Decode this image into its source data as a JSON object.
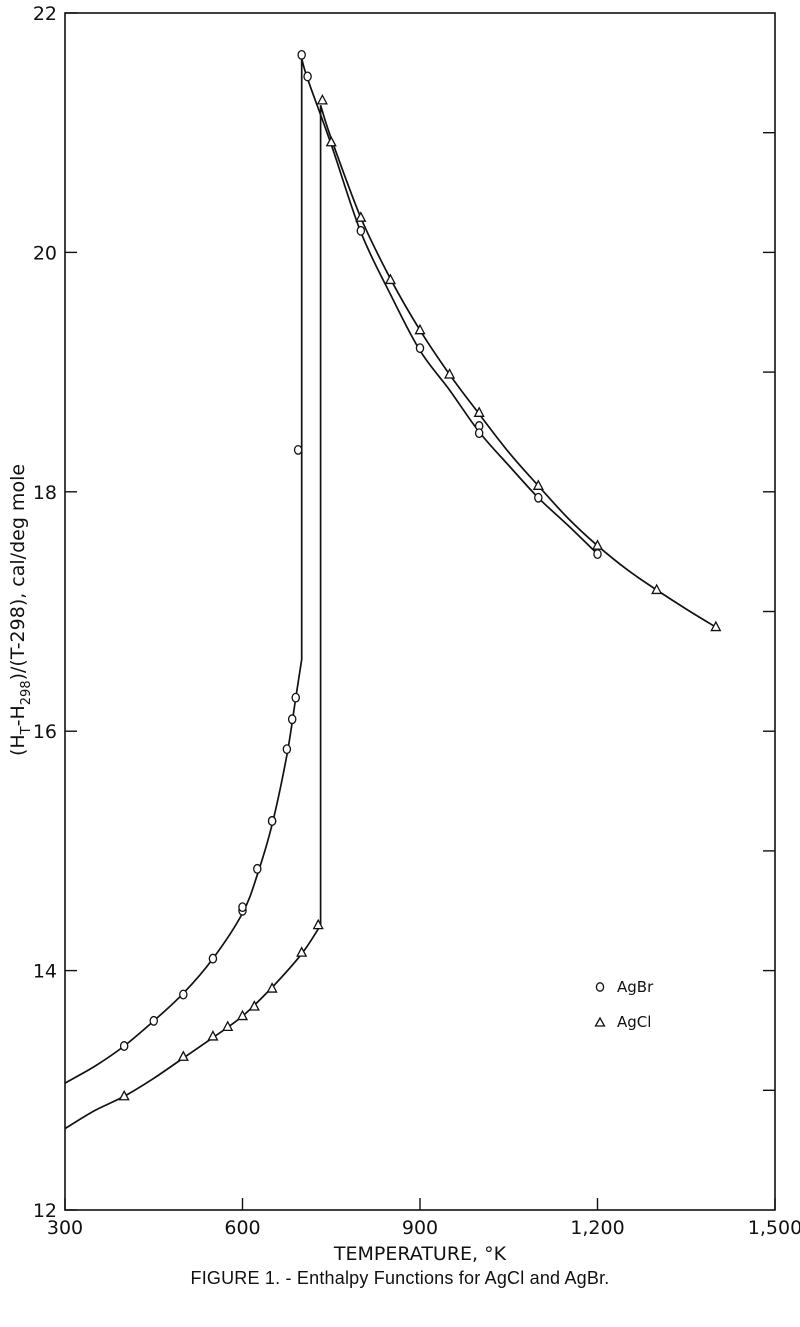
{
  "caption": "FIGURE 1. - Enthalpy Functions for AgCl and AgBr.",
  "chart_data": {
    "type": "scatter",
    "title": "",
    "xlabel": "TEMPERATURE, °K",
    "ylabel_parts": [
      "(H",
      "T",
      "-H",
      "298",
      ")/(T-298),  cal/deg mole"
    ],
    "xlim": [
      300,
      1500
    ],
    "ylim": [
      12,
      22
    ],
    "x_ticks": [
      300,
      600,
      900,
      1200,
      1500
    ],
    "x_tick_labels": [
      "300",
      "600",
      "900",
      "1,200",
      "1,500"
    ],
    "y_ticks": [
      12,
      14,
      16,
      18,
      20,
      22
    ],
    "y_tick_labels": [
      "12",
      "14",
      "16",
      "18",
      "20",
      "22"
    ],
    "grid": false,
    "legend_position": "right-middle",
    "series": [
      {
        "name": "AgBr",
        "marker": "circle",
        "points": [
          [
            400,
            13.37
          ],
          [
            450,
            13.58
          ],
          [
            500,
            13.8
          ],
          [
            550,
            14.1
          ],
          [
            600,
            14.5
          ],
          [
            600,
            14.53
          ],
          [
            625,
            14.85
          ],
          [
            650,
            15.25
          ],
          [
            650,
            15.25
          ],
          [
            675,
            15.85
          ],
          [
            684,
            16.1
          ],
          [
            690,
            16.28
          ],
          [
            694,
            18.35
          ],
          [
            700,
            21.65
          ],
          [
            710,
            21.47
          ],
          [
            800,
            20.18
          ],
          [
            900,
            19.2
          ],
          [
            1000,
            18.55
          ],
          [
            1000,
            18.49
          ],
          [
            1100,
            17.95
          ],
          [
            1200,
            17.48
          ]
        ],
        "curve": [
          [
            300,
            13.06
          ],
          [
            350,
            13.2
          ],
          [
            400,
            13.37
          ],
          [
            450,
            13.58
          ],
          [
            500,
            13.81
          ],
          [
            550,
            14.1
          ],
          [
            600,
            14.48
          ],
          [
            625,
            14.8
          ],
          [
            650,
            15.22
          ],
          [
            675,
            15.8
          ],
          [
            690,
            16.28
          ],
          [
            700,
            16.6
          ],
          [
            700,
            21.62
          ],
          [
            710,
            21.45
          ],
          [
            750,
            20.9
          ],
          [
            800,
            20.17
          ],
          [
            850,
            19.65
          ],
          [
            900,
            19.18
          ],
          [
            950,
            18.85
          ],
          [
            1000,
            18.5
          ],
          [
            1050,
            18.22
          ],
          [
            1100,
            17.95
          ],
          [
            1150,
            17.72
          ],
          [
            1200,
            17.48
          ]
        ]
      },
      {
        "name": "AgCl",
        "marker": "triangle",
        "points": [
          [
            400,
            12.95
          ],
          [
            500,
            13.28
          ],
          [
            550,
            13.45
          ],
          [
            575,
            13.53
          ],
          [
            600,
            13.62
          ],
          [
            620,
            13.7
          ],
          [
            650,
            13.85
          ],
          [
            700,
            14.15
          ],
          [
            728,
            14.38
          ],
          [
            735,
            21.27
          ],
          [
            750,
            20.92
          ],
          [
            800,
            20.29
          ],
          [
            850,
            19.77
          ],
          [
            900,
            19.35
          ],
          [
            950,
            18.98
          ],
          [
            1000,
            18.66
          ],
          [
            1100,
            18.05
          ],
          [
            1200,
            17.55
          ],
          [
            1300,
            17.18
          ],
          [
            1400,
            16.87
          ]
        ],
        "curve": [
          [
            300,
            12.68
          ],
          [
            350,
            12.83
          ],
          [
            400,
            12.95
          ],
          [
            450,
            13.1
          ],
          [
            500,
            13.27
          ],
          [
            550,
            13.44
          ],
          [
            600,
            13.62
          ],
          [
            650,
            13.86
          ],
          [
            700,
            14.14
          ],
          [
            732,
            14.38
          ],
          [
            732,
            21.23
          ],
          [
            750,
            20.95
          ],
          [
            800,
            20.29
          ],
          [
            850,
            19.78
          ],
          [
            900,
            19.35
          ],
          [
            950,
            18.98
          ],
          [
            1000,
            18.65
          ],
          [
            1050,
            18.33
          ],
          [
            1100,
            18.05
          ],
          [
            1150,
            17.78
          ],
          [
            1200,
            17.55
          ],
          [
            1250,
            17.35
          ],
          [
            1300,
            17.18
          ],
          [
            1350,
            17.02
          ],
          [
            1400,
            16.87
          ]
        ]
      }
    ]
  }
}
